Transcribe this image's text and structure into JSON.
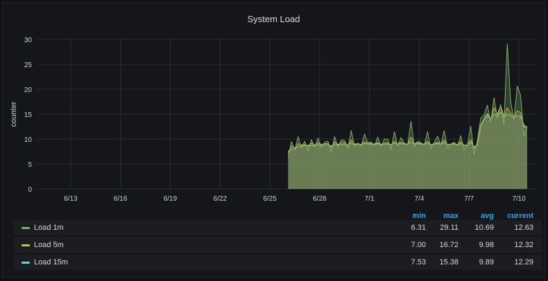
{
  "panel": {
    "title": "System Load"
  },
  "chart_data": {
    "type": "area",
    "title": "System Load",
    "ylabel": "counter",
    "xlabel": "",
    "ylim": [
      0,
      30
    ],
    "yticks": [
      0,
      5,
      10,
      15,
      20,
      25,
      30
    ],
    "xlim": [
      0,
      30
    ],
    "xticks": [
      {
        "x": 2,
        "label": "6/13"
      },
      {
        "x": 5,
        "label": "6/16"
      },
      {
        "x": 8,
        "label": "6/19"
      },
      {
        "x": 11,
        "label": "6/22"
      },
      {
        "x": 14,
        "label": "6/25"
      },
      {
        "x": 17,
        "label": "6/28"
      },
      {
        "x": 20,
        "label": "7/1"
      },
      {
        "x": 23,
        "label": "7/4"
      },
      {
        "x": 26,
        "label": "7/7"
      },
      {
        "x": 29,
        "label": "7/10"
      }
    ],
    "grid": true,
    "legend_position": "bottom",
    "x": [
      15.1,
      15.3,
      15.5,
      15.7,
      15.9,
      16.1,
      16.3,
      16.5,
      16.7,
      16.9,
      17.1,
      17.3,
      17.5,
      17.7,
      17.9,
      18.1,
      18.3,
      18.5,
      18.7,
      18.9,
      19.1,
      19.3,
      19.5,
      19.7,
      19.9,
      20.1,
      20.3,
      20.5,
      20.7,
      20.9,
      21.1,
      21.3,
      21.5,
      21.7,
      21.9,
      22.1,
      22.3,
      22.5,
      22.7,
      22.9,
      23.1,
      23.3,
      23.5,
      23.7,
      23.9,
      24.1,
      24.3,
      24.5,
      24.7,
      24.9,
      25.1,
      25.3,
      25.5,
      25.7,
      25.9,
      26.1,
      26.3,
      26.5,
      26.7,
      26.9,
      27.1,
      27.3,
      27.5,
      27.7,
      27.9,
      28.1,
      28.3,
      28.5,
      28.7,
      28.9,
      29.1,
      29.3,
      29.5
    ],
    "series": [
      {
        "name": "Load 1m",
        "color": "#7eb26d",
        "values": [
          6.3,
          9.5,
          7.8,
          10.5,
          8.2,
          9.6,
          7.6,
          9.9,
          8.4,
          10.2,
          8.3,
          9.4,
          9.6,
          7.4,
          10.5,
          8.4,
          9.8,
          9.7,
          8.2,
          11.7,
          8.5,
          9.2,
          8.6,
          11.0,
          9.3,
          9.4,
          8.7,
          10.4,
          8.6,
          10.0,
          10.0,
          7.9,
          11.5,
          8.6,
          10.3,
          9.2,
          8.9,
          13.6,
          8.5,
          9.6,
          9.3,
          8.8,
          11.5,
          8.1,
          9.3,
          10.6,
          8.8,
          11.7,
          8.1,
          9.0,
          9.4,
          8.6,
          10.7,
          7.8,
          8.8,
          12.6,
          6.9,
          9.7,
          14.2,
          14.8,
          16.8,
          13.5,
          18.3,
          14.2,
          16.9,
          12.9,
          29.1,
          17.6,
          13.9,
          20.6,
          18.8,
          10.7,
          12.6
        ]
      },
      {
        "name": "Load 5m",
        "color": "#eab839",
        "values": [
          7.3,
          8.6,
          8.2,
          9.1,
          8.8,
          9.0,
          8.7,
          9.2,
          8.8,
          9.3,
          8.9,
          9.1,
          9.1,
          8.4,
          9.5,
          8.9,
          9.3,
          9.3,
          8.7,
          9.8,
          9.0,
          9.1,
          8.9,
          9.5,
          9.1,
          9.2,
          9.0,
          9.3,
          8.9,
          9.2,
          9.3,
          8.8,
          9.6,
          9.0,
          9.4,
          9.1,
          9.0,
          10.4,
          9.1,
          9.3,
          9.1,
          9.0,
          9.6,
          8.8,
          9.1,
          9.4,
          9.0,
          9.8,
          8.9,
          9.0,
          9.1,
          8.9,
          9.5,
          8.7,
          8.8,
          9.9,
          8.2,
          8.9,
          12.8,
          14.1,
          15.2,
          14.0,
          16.3,
          15.0,
          16.7,
          14.6,
          16.3,
          15.2,
          14.5,
          15.7,
          15.3,
          12.5,
          12.3
        ]
      },
      {
        "name": "Load 15m",
        "color": "#6ed0e0",
        "values": [
          7.5,
          8.0,
          8.1,
          8.5,
          8.6,
          8.7,
          8.6,
          8.8,
          8.7,
          8.9,
          8.7,
          8.8,
          8.9,
          8.6,
          9.0,
          8.8,
          8.9,
          9.0,
          8.8,
          9.2,
          8.9,
          9.0,
          8.9,
          9.1,
          9.0,
          9.0,
          8.9,
          9.1,
          8.9,
          9.0,
          9.0,
          8.9,
          9.2,
          9.0,
          9.1,
          9.0,
          9.0,
          9.5,
          9.0,
          9.1,
          9.0,
          9.0,
          9.2,
          8.9,
          9.0,
          9.1,
          9.0,
          9.3,
          8.9,
          9.0,
          9.0,
          8.9,
          9.1,
          8.8,
          8.8,
          9.4,
          8.5,
          8.8,
          12.6,
          13.9,
          14.8,
          14.0,
          15.1,
          14.6,
          15.4,
          14.4,
          15.1,
          14.7,
          14.3,
          14.8,
          14.5,
          12.9,
          12.3
        ]
      }
    ]
  },
  "legend": {
    "headers": {
      "min": "min",
      "max": "max",
      "avg": "avg",
      "current": "current"
    },
    "rows": [
      {
        "name": "Load 1m",
        "color": "#7eb26d",
        "min": "6.31",
        "max": "29.11",
        "avg": "10.69",
        "current": "12.63"
      },
      {
        "name": "Load 5m",
        "color": "#eab839",
        "min": "7.00",
        "max": "16.72",
        "avg": "9.98",
        "current": "12.32"
      },
      {
        "name": "Load 15m",
        "color": "#6ed0e0",
        "min": "7.53",
        "max": "15.38",
        "avg": "9.89",
        "current": "12.29"
      }
    ]
  }
}
